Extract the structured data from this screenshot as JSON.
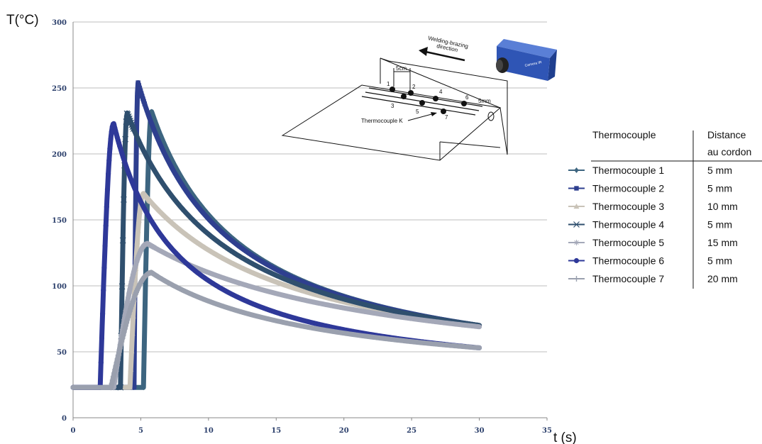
{
  "chart_data": {
    "type": "scatter",
    "title": "",
    "xlabel": "t (s)",
    "ylabel": "T(°C)",
    "xlim": [
      0,
      35
    ],
    "ylim": [
      0,
      300
    ],
    "xticks": [
      "0",
      "5",
      "10",
      "15",
      "20",
      "25",
      "30",
      "35"
    ],
    "yticks": [
      "0",
      "50",
      "100",
      "150",
      "200",
      "250",
      "300"
    ],
    "grid": "horizontal",
    "legend_position": "right",
    "legend_headers": [
      "Thermocouple",
      "Distance",
      "au cordon"
    ],
    "series": [
      {
        "name": "Thermocouple 1",
        "distance": "5 mm",
        "color": "#3d6580",
        "marker": "diamond",
        "t_start": 5.2,
        "T_peak": 232,
        "t_peak": 5.8,
        "T_end": 70
      },
      {
        "name": "Thermocouple 2",
        "distance": "5 mm",
        "color": "#2e3f8f",
        "marker": "square",
        "t_start": 4.5,
        "T_peak": 254,
        "t_peak": 4.8,
        "T_end": 70
      },
      {
        "name": "Thermocouple 3",
        "distance": "10 mm",
        "color": "#c9c3b8",
        "marker": "triangle",
        "t_start": 4.2,
        "T_peak": 170,
        "t_peak": 5.2,
        "T_end": 70
      },
      {
        "name": "Thermocouple 4",
        "distance": "5 mm",
        "color": "#2f4f6e",
        "marker": "x",
        "t_start": 3.5,
        "T_peak": 231,
        "t_peak": 4.0,
        "T_end": 70
      },
      {
        "name": "Thermocouple 5",
        "distance": "15 mm",
        "color": "#a4a8b8",
        "marker": "star",
        "t_start": 3.0,
        "T_peak": 132,
        "t_peak": 5.5,
        "T_end": 69
      },
      {
        "name": "Thermocouple 6",
        "distance": "5 mm",
        "color": "#2e3899",
        "marker": "circle",
        "t_start": 2.0,
        "T_peak": 223,
        "t_peak": 3.0,
        "T_end": 53
      },
      {
        "name": "Thermocouple 7",
        "distance": "20 mm",
        "color": "#9aa0ae",
        "marker": "plus",
        "t_start": 2.8,
        "T_peak": 110,
        "t_peak": 5.8,
        "T_end": 53
      }
    ],
    "baseline_T": 23,
    "t_end": 30
  },
  "inset_diagram": {
    "camera_label": "Camera IR",
    "direction_label": [
      "Welding-brazing",
      "direction"
    ],
    "spacing_label": "5cm",
    "distance_label": "5mm",
    "thermocouple_label": "Thermocouple K",
    "point_numbers": [
      "1",
      "2",
      "3",
      "4",
      "5",
      "6",
      "7"
    ],
    "colors": {
      "camera": "#2f55b5",
      "lines": "#111111"
    }
  }
}
